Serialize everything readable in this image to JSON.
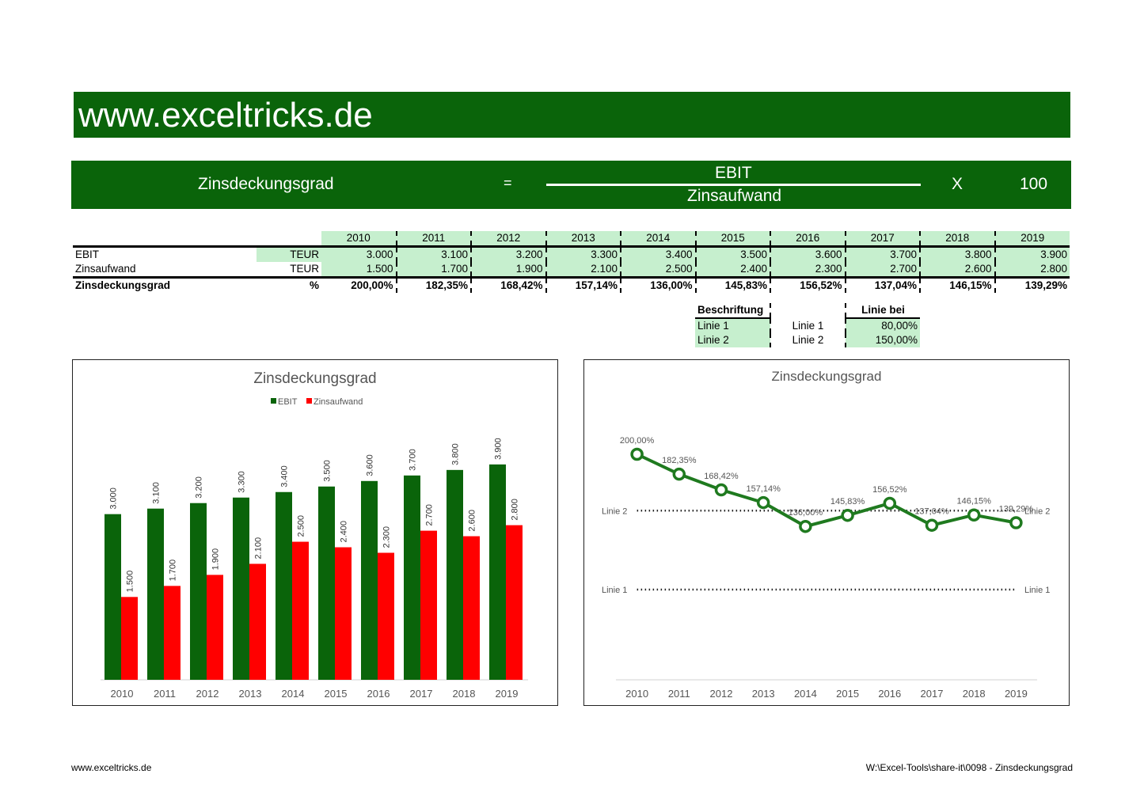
{
  "banner": {
    "title": "www.exceltricks.de"
  },
  "formula": {
    "label": "Zinsdeckungsgrad",
    "equals": "=",
    "numerator": "EBIT",
    "denominator": "Zinsaufwand",
    "times": "X",
    "factor": "100"
  },
  "table": {
    "years": [
      "2010",
      "2011",
      "2012",
      "2013",
      "2014",
      "2015",
      "2016",
      "2017",
      "2018",
      "2019"
    ],
    "rows": [
      {
        "label": "EBIT",
        "unit": "TEUR",
        "values": [
          "3.000",
          "3.100",
          "3.200",
          "3.300",
          "3.400",
          "3.500",
          "3.600",
          "3.700",
          "3.800",
          "3.900"
        ]
      },
      {
        "label": "Zinsaufwand",
        "unit": "TEUR",
        "values": [
          "1.500",
          "1.700",
          "1.900",
          "2.100",
          "2.500",
          "2.400",
          "2.300",
          "2.700",
          "2.600",
          "2.800"
        ]
      },
      {
        "label": "Zinsdeckungsgrad",
        "unit": "%",
        "values": [
          "200,00%",
          "182,35%",
          "168,42%",
          "157,14%",
          "136,00%",
          "145,83%",
          "156,52%",
          "137,04%",
          "146,15%",
          "139,29%"
        ]
      }
    ]
  },
  "lines_table": {
    "h1": "Beschriftung",
    "h3": "Linie bei",
    "rows": [
      {
        "label": "Linie 1",
        "name": "Linie 1",
        "value": "80,00%"
      },
      {
        "label": "Linie 2",
        "name": "Linie 2",
        "value": "150,00%"
      }
    ]
  },
  "chart_data": [
    {
      "type": "bar",
      "title": "Zinsdeckungsgrad",
      "categories": [
        "2010",
        "2011",
        "2012",
        "2013",
        "2014",
        "2015",
        "2016",
        "2017",
        "2018",
        "2019"
      ],
      "series": [
        {
          "name": "EBIT",
          "color": "#0a640a",
          "values": [
            3000,
            3100,
            3200,
            3300,
            3400,
            3500,
            3600,
            3700,
            3800,
            3900
          ],
          "labels": [
            "3.000",
            "3.100",
            "3.200",
            "3.300",
            "3.400",
            "3.500",
            "3.600",
            "3.700",
            "3.800",
            "3.900"
          ]
        },
        {
          "name": "Zinsaufwand",
          "color": "#ff0000",
          "values": [
            1500,
            1700,
            1900,
            2100,
            2500,
            2400,
            2300,
            2700,
            2600,
            2800
          ],
          "labels": [
            "1.500",
            "1.700",
            "1.900",
            "2.100",
            "2.500",
            "2.400",
            "2.300",
            "2.700",
            "2.600",
            "2.800"
          ]
        }
      ],
      "ylim": [
        0,
        4500
      ],
      "legend": "top",
      "grid": false
    },
    {
      "type": "line",
      "title": "Zinsdeckungsgrad",
      "categories": [
        "2010",
        "2011",
        "2012",
        "2013",
        "2014",
        "2015",
        "2016",
        "2017",
        "2018",
        "2019"
      ],
      "values": [
        200.0,
        182.35,
        168.42,
        157.14,
        136.0,
        145.83,
        156.52,
        137.04,
        146.15,
        139.29
      ],
      "labels": [
        "200,00%",
        "182,35%",
        "168,42%",
        "157,14%",
        "136,00%",
        "145,83%",
        "156,52%",
        "137,04%",
        "146,15%",
        "139,29%"
      ],
      "color": "#1f7a1f",
      "reference_lines": [
        {
          "label": "Linie 1",
          "value": 80
        },
        {
          "label": "Linie 2",
          "value": 150
        }
      ],
      "ylim": [
        0,
        220
      ],
      "grid": false
    }
  ],
  "footer": {
    "left": "www.exceltricks.de",
    "right": "W:\\Excel-Tools\\share-it\\0098 - Zinsdeckungsgrad"
  }
}
